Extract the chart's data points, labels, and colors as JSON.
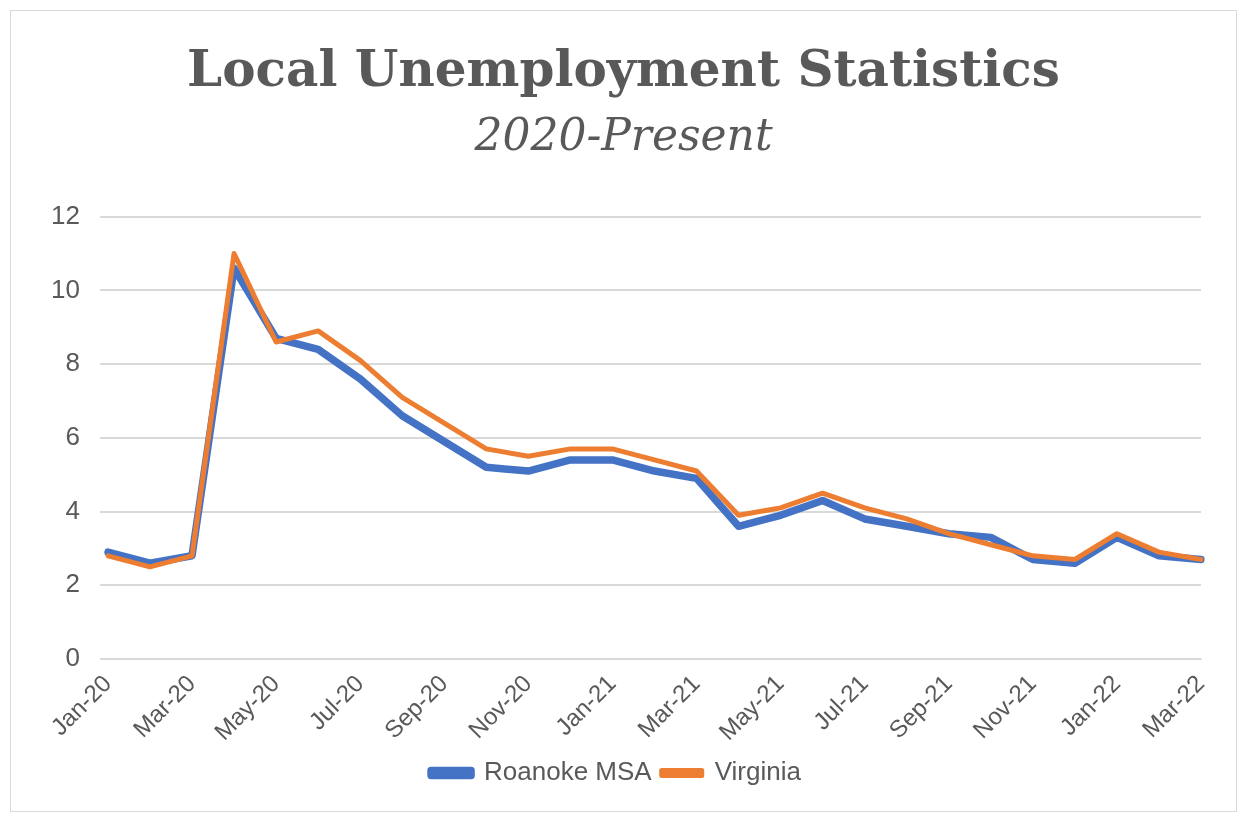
{
  "chart_data": {
    "type": "line",
    "title": "Local Unemployment Statistics",
    "subtitle": "2020-Present",
    "categories": [
      "Jan-20",
      null,
      "Mar-20",
      null,
      "May-20",
      null,
      "Jul-20",
      null,
      "Sep-20",
      null,
      "Nov-20",
      null,
      "Jan-21",
      null,
      "Mar-21",
      null,
      "May-21",
      null,
      "Jul-21",
      null,
      "Sep-21",
      null,
      "Nov-21",
      null,
      "Jan-22",
      null,
      "Mar-22"
    ],
    "series": [
      {
        "name": "Roanoke MSA",
        "color": "#4472c4",
        "values": [
          2.9,
          2.6,
          2.8,
          10.6,
          8.7,
          8.4,
          7.6,
          6.6,
          5.9,
          5.2,
          5.1,
          5.4,
          5.4,
          5.1,
          4.9,
          3.6,
          3.9,
          4.3,
          3.8,
          3.6,
          3.4,
          3.3,
          2.7,
          2.6,
          3.3,
          2.8,
          2.7
        ]
      },
      {
        "name": "Virginia",
        "color": "#ed7d31",
        "values": [
          2.8,
          2.5,
          2.8,
          11.0,
          8.6,
          8.9,
          8.1,
          7.1,
          6.4,
          5.7,
          5.5,
          5.7,
          5.7,
          5.4,
          5.1,
          3.9,
          4.1,
          4.5,
          4.1,
          3.8,
          3.4,
          3.1,
          2.8,
          2.7,
          3.4,
          2.9,
          2.7
        ]
      }
    ],
    "ylim": [
      0,
      12
    ],
    "yticks": [
      0,
      2,
      4,
      6,
      8,
      10,
      12
    ],
    "grid": "y",
    "legend": "bottom",
    "marker": "none",
    "line_style": "solid"
  }
}
